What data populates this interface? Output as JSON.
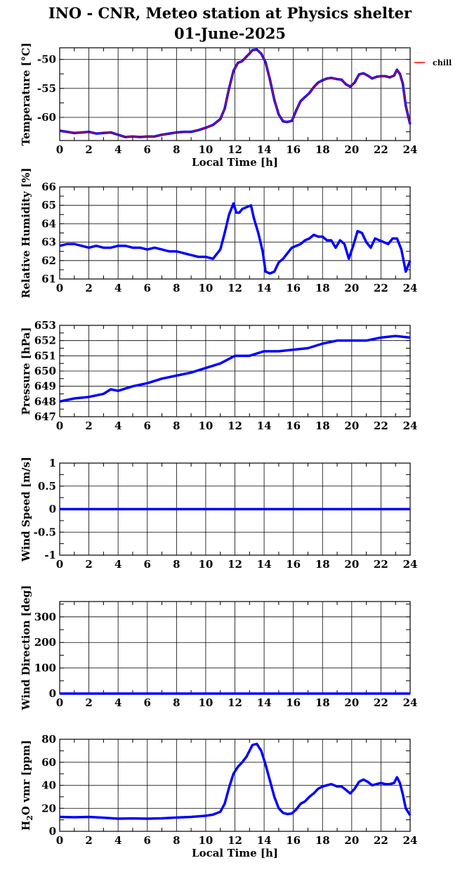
{
  "title_line1": "INO - CNR, Meteo station at Physics shelter",
  "title_line2": "01-June-2025",
  "colors": {
    "series": "#0000ff",
    "chill": "#ff0000",
    "grid": "#000000"
  },
  "chart_data": [
    {
      "id": "temperature",
      "type": "line",
      "ylabel": "Temperature [°C]",
      "xlabel": "Local Time [h]",
      "xlim": [
        0,
        24
      ],
      "ylim": [
        -64,
        -48
      ],
      "yticks": [
        -60,
        -55,
        -50
      ],
      "xticks": [
        0,
        2,
        4,
        6,
        8,
        10,
        12,
        14,
        16,
        18,
        20,
        22,
        24
      ],
      "legend": {
        "entries": [
          "chill"
        ],
        "placement": "outside-top-right"
      },
      "series": [
        {
          "name": "",
          "color": "#0000ff",
          "x": [
            0,
            0.5,
            1,
            1.5,
            2,
            2.5,
            3,
            3.5,
            4,
            4.5,
            5,
            5.5,
            6,
            6.5,
            7,
            7.5,
            8,
            8.5,
            9,
            9.5,
            10,
            10.5,
            11,
            11.3,
            11.6,
            11.9,
            12.2,
            12.5,
            12.8,
            13.0,
            13.2,
            13.5,
            13.8,
            14.1,
            14.4,
            14.7,
            15.0,
            15.3,
            15.6,
            15.9,
            16.2,
            16.5,
            16.8,
            17.1,
            17.4,
            17.7,
            18.0,
            18.3,
            18.6,
            19.0,
            19.3,
            19.6,
            19.9,
            20.2,
            20.5,
            20.8,
            21.1,
            21.4,
            21.7,
            22.0,
            22.3,
            22.6,
            22.9,
            23.1,
            23.3,
            23.5,
            23.7,
            24.0
          ],
          "y": [
            -62.3,
            -62.5,
            -62.7,
            -62.6,
            -62.5,
            -62.8,
            -62.7,
            -62.6,
            -63.0,
            -63.4,
            -63.3,
            -63.4,
            -63.3,
            -63.3,
            -63.0,
            -62.8,
            -62.6,
            -62.5,
            -62.5,
            -62.2,
            -61.8,
            -61.3,
            -60.3,
            -58.5,
            -55.0,
            -52.0,
            -50.6,
            -50.3,
            -49.5,
            -49.0,
            -48.4,
            -48.3,
            -49.0,
            -50.5,
            -53.5,
            -57.0,
            -59.5,
            -60.7,
            -60.8,
            -60.6,
            -58.8,
            -57.2,
            -56.5,
            -55.8,
            -54.8,
            -54.0,
            -53.6,
            -53.3,
            -53.2,
            -53.4,
            -53.5,
            -54.3,
            -54.7,
            -54.0,
            -52.6,
            -52.4,
            -52.8,
            -53.3,
            -53.0,
            -52.9,
            -52.9,
            -53.1,
            -52.8,
            -51.8,
            -52.5,
            -54.2,
            -58.0,
            -61.2
          ]
        }
      ]
    },
    {
      "id": "humidity",
      "type": "line",
      "ylabel": "Relative Humidity [%]",
      "xlabel": "",
      "xlim": [
        0,
        24
      ],
      "ylim": [
        61,
        66
      ],
      "yticks": [
        61,
        62,
        63,
        64,
        65,
        66
      ],
      "xticks": [
        0,
        2,
        4,
        6,
        8,
        10,
        12,
        14,
        16,
        18,
        20,
        22,
        24
      ],
      "series": [
        {
          "name": "",
          "color": "#0000ff",
          "x": [
            0,
            0.5,
            1,
            1.5,
            2,
            2.5,
            3,
            3.5,
            4,
            4.5,
            5,
            5.5,
            6,
            6.5,
            7,
            7.5,
            8,
            8.5,
            9,
            9.5,
            10,
            10.5,
            11,
            11.3,
            11.6,
            11.9,
            12.1,
            12.3,
            12.5,
            12.8,
            13.1,
            13.3,
            13.6,
            13.9,
            14.1,
            14.4,
            14.7,
            15.0,
            15.3,
            15.6,
            15.9,
            16.2,
            16.5,
            16.8,
            17.1,
            17.4,
            17.7,
            18.0,
            18.3,
            18.6,
            18.9,
            19.2,
            19.5,
            19.8,
            20.1,
            20.4,
            20.7,
            21.0,
            21.3,
            21.6,
            21.9,
            22.2,
            22.5,
            22.8,
            23.1,
            23.4,
            23.7,
            24.0
          ],
          "y": [
            62.8,
            62.9,
            62.9,
            62.8,
            62.7,
            62.8,
            62.7,
            62.7,
            62.8,
            62.8,
            62.7,
            62.7,
            62.6,
            62.7,
            62.6,
            62.5,
            62.5,
            62.4,
            62.3,
            62.2,
            62.2,
            62.1,
            62.6,
            63.5,
            64.5,
            65.1,
            64.6,
            64.6,
            64.8,
            64.9,
            65.0,
            64.3,
            63.5,
            62.5,
            61.4,
            61.3,
            61.4,
            61.9,
            62.1,
            62.4,
            62.7,
            62.8,
            62.9,
            63.1,
            63.2,
            63.4,
            63.3,
            63.3,
            63.1,
            63.1,
            62.7,
            63.1,
            62.9,
            62.1,
            62.8,
            63.6,
            63.5,
            63.0,
            62.7,
            63.2,
            63.1,
            63.0,
            62.9,
            63.2,
            63.2,
            62.6,
            61.4,
            62.0
          ]
        }
      ]
    },
    {
      "id": "pressure",
      "type": "line",
      "ylabel": "Pressure [hPa]",
      "xlabel": "",
      "xlim": [
        0,
        24
      ],
      "ylim": [
        647,
        653
      ],
      "yticks": [
        647,
        648,
        649,
        650,
        651,
        652,
        653
      ],
      "xticks": [
        0,
        2,
        4,
        6,
        8,
        10,
        12,
        14,
        16,
        18,
        20,
        22,
        24
      ],
      "series": [
        {
          "name": "",
          "color": "#0000ff",
          "x": [
            0,
            1,
            2,
            3,
            3.5,
            4,
            5,
            6,
            7,
            8,
            9,
            10,
            11,
            12,
            13,
            14,
            15,
            16,
            17,
            18,
            19,
            20,
            21,
            22,
            23,
            24
          ],
          "y": [
            648.0,
            648.2,
            648.3,
            648.5,
            648.8,
            648.7,
            649.0,
            649.2,
            649.5,
            649.7,
            649.9,
            650.2,
            650.5,
            651.0,
            651.0,
            651.3,
            651.3,
            651.4,
            651.5,
            651.8,
            652.0,
            652.0,
            652.0,
            652.2,
            652.3,
            652.2
          ]
        }
      ]
    },
    {
      "id": "wind_speed",
      "type": "line",
      "ylabel": "Wind Speed [m/s]",
      "xlabel": "",
      "xlim": [
        0,
        24
      ],
      "ylim": [
        -1,
        1
      ],
      "yticks": [
        -1,
        -0.5,
        0,
        0.5,
        1
      ],
      "xticks": [
        0,
        2,
        4,
        6,
        8,
        10,
        12,
        14,
        16,
        18,
        20,
        22,
        24
      ],
      "series": [
        {
          "name": "",
          "color": "#0000ff",
          "x": [
            0,
            24
          ],
          "y": [
            0,
            0
          ]
        }
      ]
    },
    {
      "id": "wind_direction",
      "type": "line",
      "ylabel": "Wind Direction [deg]",
      "xlabel": "",
      "xlim": [
        0,
        24
      ],
      "ylim": [
        0,
        360
      ],
      "yticks": [
        0,
        100,
        200,
        300
      ],
      "xticks": [
        0,
        2,
        4,
        6,
        8,
        10,
        12,
        14,
        16,
        18,
        20,
        22,
        24
      ],
      "series": [
        {
          "name": "",
          "color": "#0000ff",
          "x": [
            0,
            24
          ],
          "y": [
            0,
            0
          ]
        }
      ]
    },
    {
      "id": "h2o_vmr",
      "type": "line",
      "ylabel": "H",
      "ylabel_sub": "2",
      "ylabel_rest": "O vmr [ppm]",
      "xlabel": "Local Time [h]",
      "xlim": [
        0,
        24
      ],
      "ylim": [
        0,
        80
      ],
      "yticks": [
        0,
        20,
        40,
        60,
        80
      ],
      "xticks": [
        0,
        2,
        4,
        6,
        8,
        10,
        12,
        14,
        16,
        18,
        20,
        22,
        24
      ],
      "series": [
        {
          "name": "",
          "color": "#0000ff",
          "x": [
            0,
            1,
            2,
            3,
            4,
            5,
            6,
            7,
            8,
            9,
            10,
            10.5,
            11,
            11.3,
            11.6,
            11.9,
            12.2,
            12.5,
            12.8,
            13.0,
            13.2,
            13.5,
            13.8,
            14.1,
            14.4,
            14.7,
            15.0,
            15.3,
            15.6,
            15.9,
            16.2,
            16.5,
            16.8,
            17.1,
            17.4,
            17.7,
            18.0,
            18.3,
            18.6,
            19.0,
            19.3,
            19.6,
            19.9,
            20.2,
            20.5,
            20.8,
            21.1,
            21.4,
            21.7,
            22.0,
            22.3,
            22.6,
            22.9,
            23.1,
            23.3,
            23.5,
            23.7,
            24.0
          ],
          "y": [
            12.5,
            12.2,
            12.5,
            11.8,
            11.0,
            11.2,
            11.0,
            11.3,
            12.0,
            12.5,
            13.5,
            14.5,
            17.0,
            24.0,
            38.0,
            50.0,
            56.0,
            60.0,
            65.0,
            70.0,
            75.0,
            76.0,
            70.0,
            58.0,
            44.0,
            30.0,
            20.0,
            16.0,
            15.0,
            15.5,
            19.0,
            24.0,
            26.0,
            30.0,
            33.0,
            37.0,
            39.0,
            40.0,
            41.0,
            39.0,
            39.0,
            36.0,
            33.0,
            37.0,
            43.0,
            45.0,
            43.0,
            40.0,
            41.0,
            42.0,
            41.0,
            41.0,
            42.0,
            47.0,
            42.0,
            32.0,
            20.0,
            14.0
          ]
        }
      ]
    }
  ]
}
